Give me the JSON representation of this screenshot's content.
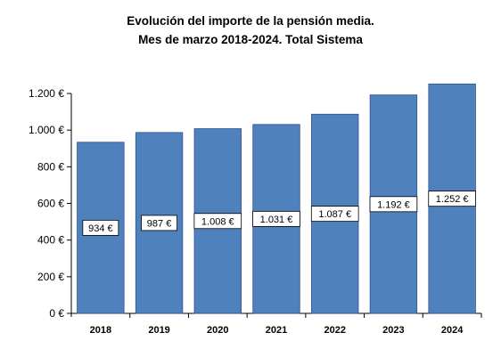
{
  "chart_data": {
    "type": "bar",
    "title": "Evolución del importe de la pensión media.",
    "subtitle": "Mes de marzo 2018-2024. Total Sistema",
    "categories": [
      "2018",
      "2019",
      "2020",
      "2021",
      "2022",
      "2023",
      "2024"
    ],
    "values": [
      934,
      987,
      1008,
      1031,
      1087,
      1192,
      1252
    ],
    "data_labels": [
      "934 €",
      "987 €",
      "1.008 €",
      "1.031 €",
      "1.087 €",
      "1.192 €",
      "1.252 €"
    ],
    "y_ticks": [
      0,
      200,
      400,
      600,
      800,
      1000,
      1200
    ],
    "y_tick_labels": [
      "0 €",
      "200 €",
      "400 €",
      "600 €",
      "800 €",
      "1.000 €",
      "1.200 €"
    ],
    "ylim": [
      0,
      1200
    ],
    "grid": false,
    "legend": "none",
    "bar_color": "#4F81BD",
    "bar_edge_color": "#2F528F"
  }
}
